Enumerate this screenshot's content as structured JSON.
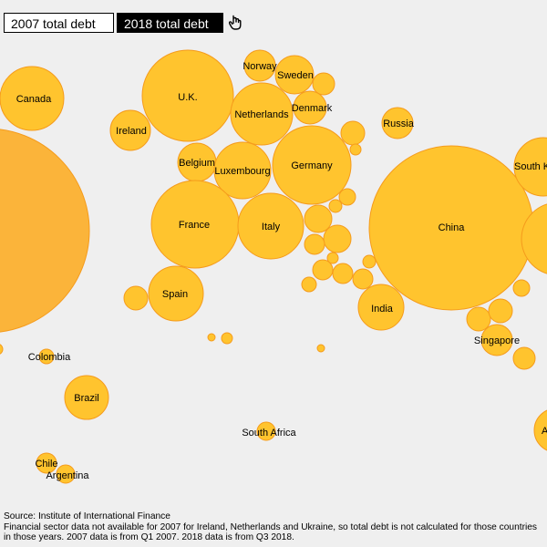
{
  "toggle": {
    "option_2007": "2007 total debt",
    "option_2018": "2018 total debt",
    "selected": "2018 total debt",
    "cursor_icon": "hand-pointer-icon"
  },
  "colors": {
    "bubble_fill": "#ffc42e",
    "bubble_stroke": "#f59b1c",
    "large_left_fill": "#fbb43a",
    "background": "#efefef",
    "active_button": "#000000"
  },
  "labels": {
    "canada": "Canada",
    "uk": "U.K.",
    "norway": "Norway",
    "sweden": "Sweden",
    "netherlands": "Netherlands",
    "denmark": "Denmark",
    "ireland": "Ireland",
    "russia": "Russia",
    "belgium": "Belgium",
    "luxembourg": "Luxembourg",
    "germany": "Germany",
    "south_korea_partial": "South K",
    "france": "France",
    "italy": "Italy",
    "china": "China",
    "spain": "Spain",
    "india": "India",
    "singapore": "Singapore",
    "colombia": "Colombia",
    "brazil": "Brazil",
    "south_africa": "South Africa",
    "chile": "Chile",
    "argentina": "Argentina",
    "right_edge_partial": "A"
  },
  "footer": {
    "source": "Source: Institute of International Finance",
    "note": "Financial sector data not available for 2007 for Ireland, Netherlands and Ukraine, so total debt is not calculated for those countries in those years. 2007 data is from Q1 2007. 2018 data is from Q3 2018."
  }
}
